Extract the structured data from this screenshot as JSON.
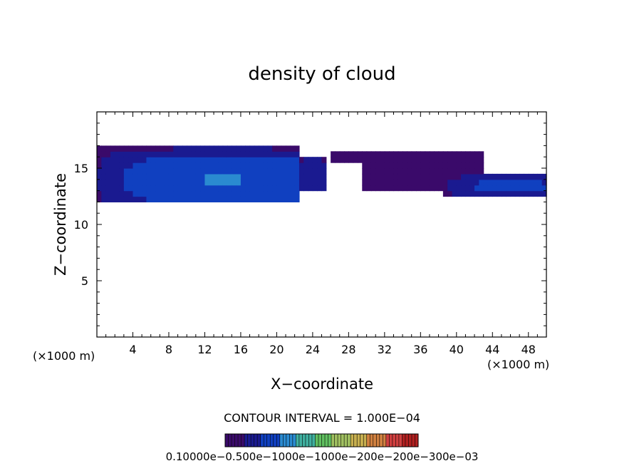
{
  "chart_data": {
    "type": "heatmap",
    "title": "density of cloud",
    "xlabel": "X−coordinate",
    "ylabel": "Z−coordinate",
    "x_unit_left": "(×1000 m)",
    "x_unit_right": "(×1000 m)",
    "xlim": [
      0,
      50
    ],
    "ylim": [
      0,
      20
    ],
    "x_ticks": [
      4,
      8,
      12,
      16,
      20,
      24,
      28,
      32,
      36,
      40,
      44,
      48
    ],
    "y_ticks": [
      5,
      10,
      15
    ],
    "contour_interval_text": "CONTOUR INTERVAL = 1.000E−04",
    "colorbar_label_text": "0.10000e−0.500e−1000e−1000e−200e−200e−300e−03",
    "colorbar_colors": [
      "#3a0a6a",
      "#1a1a90",
      "#1040c0",
      "#2a8ad0",
      "#40b0a0",
      "#60c060",
      "#a0c060",
      "#c8b050",
      "#d08040",
      "#d04040",
      "#b02020"
    ],
    "cloud_bands": [
      {
        "x_start": 0,
        "x_end": 22.5,
        "z_bottom": 12.0,
        "z_top": 16.8,
        "peak_x": 14,
        "peak_z": 14.0,
        "intensity": 0.95
      },
      {
        "x_start": 22,
        "x_end": 25.5,
        "z_bottom": 13.0,
        "z_top": 16.2,
        "peak_x": 24,
        "peak_z": 13.6,
        "intensity": 0.55
      },
      {
        "x_start": 26,
        "x_end": 30.5,
        "z_bottom": 15.3,
        "z_top": 16.6,
        "peak_x": 28.5,
        "peak_z": 16.0,
        "intensity": 0.25
      },
      {
        "x_start": 29.5,
        "x_end": 43,
        "z_bottom": 13.2,
        "z_top": 16.5,
        "peak_x": 34,
        "peak_z": 15.0,
        "intensity": 0.3
      },
      {
        "x_start": 38.5,
        "x_end": 50,
        "z_bottom": 12.4,
        "z_top": 14.4,
        "peak_x": 46,
        "peak_z": 13.4,
        "intensity": 0.75
      }
    ]
  }
}
